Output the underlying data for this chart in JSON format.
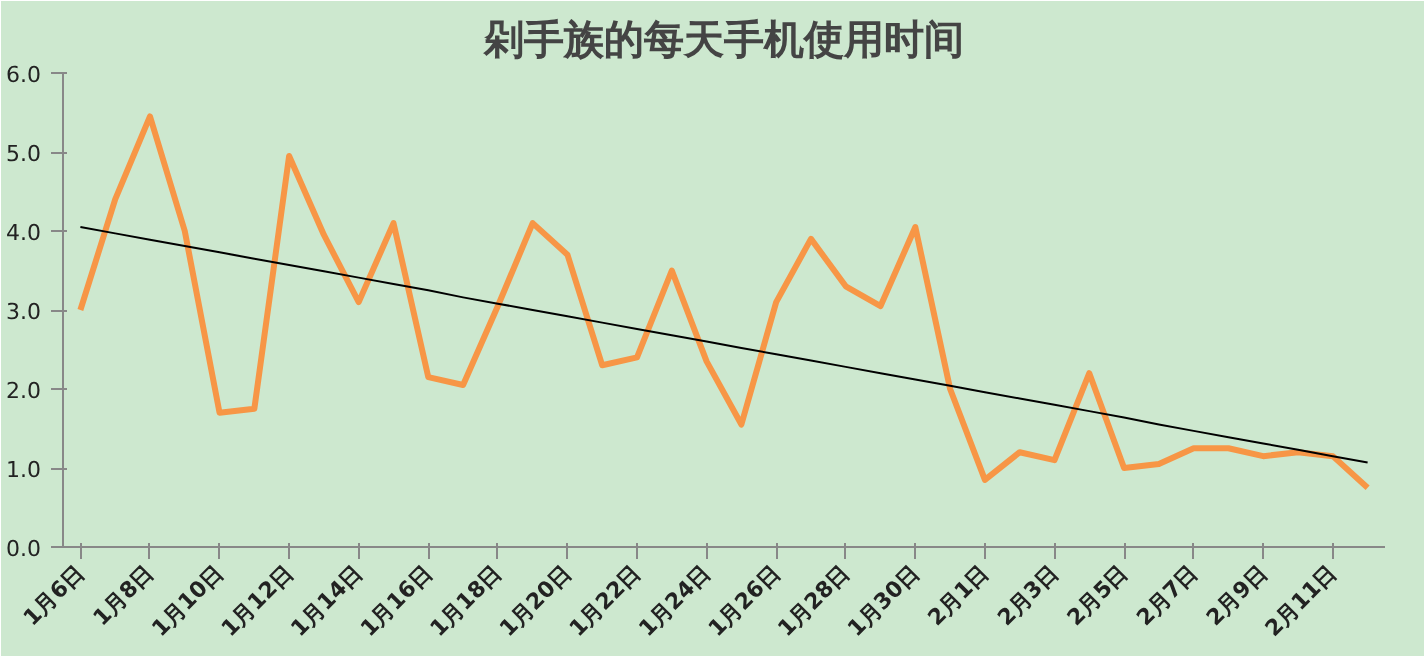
{
  "chart_data": {
    "type": "line",
    "title": "剁手族的每天手机使用时间",
    "categories": [
      "1月6日",
      null,
      "1月8日",
      null,
      "1月10日",
      null,
      "1月12日",
      null,
      "1月14日",
      null,
      "1月16日",
      null,
      "1月18日",
      null,
      "1月20日",
      null,
      "1月22日",
      null,
      "1月24日",
      null,
      "1月26日",
      null,
      "1月28日",
      null,
      "1月30日",
      null,
      "2月1日",
      null,
      "2月3日",
      null,
      "2月5日",
      null,
      "2月7日",
      null,
      "2月9日",
      null,
      "2月11日",
      null
    ],
    "series": [
      {
        "color": "#f79646",
        "values": [
          3.0,
          4.4,
          5.45,
          4.0,
          1.7,
          1.75,
          4.95,
          3.95,
          3.1,
          4.1,
          2.15,
          2.05,
          3.05,
          4.1,
          3.7,
          2.3,
          2.4,
          3.5,
          2.35,
          1.55,
          3.1,
          3.9,
          3.3,
          3.05,
          4.05,
          2.0,
          0.85,
          1.2,
          1.1,
          2.2,
          1.0,
          1.05,
          1.25,
          1.25,
          1.15,
          1.2,
          1.15,
          0.75
        ]
      },
      {
        "color": "#000000",
        "values": [
          4.05,
          3.97,
          3.89,
          3.81,
          3.73,
          3.65,
          3.57,
          3.49,
          3.41,
          3.33,
          3.25,
          3.16,
          3.08,
          3.0,
          2.92,
          2.84,
          2.76,
          2.68,
          2.6,
          2.52,
          2.44,
          2.36,
          2.28,
          2.2,
          2.12,
          2.04,
          1.96,
          1.88,
          1.8,
          1.72,
          1.64,
          1.55,
          1.47,
          1.39,
          1.31,
          1.23,
          1.15,
          1.07
        ]
      }
    ],
    "ylim": [
      0,
      6
    ],
    "yticks": [
      {
        "value": 0,
        "label": "0.0"
      },
      {
        "value": 1,
        "label": "1.0"
      },
      {
        "value": 2,
        "label": "2.0"
      },
      {
        "value": 3,
        "label": "3.0"
      },
      {
        "value": 4,
        "label": "4.0"
      },
      {
        "value": 5,
        "label": "5.0"
      },
      {
        "value": 6,
        "label": "6.0"
      }
    ],
    "grid": false,
    "marker": "none"
  }
}
